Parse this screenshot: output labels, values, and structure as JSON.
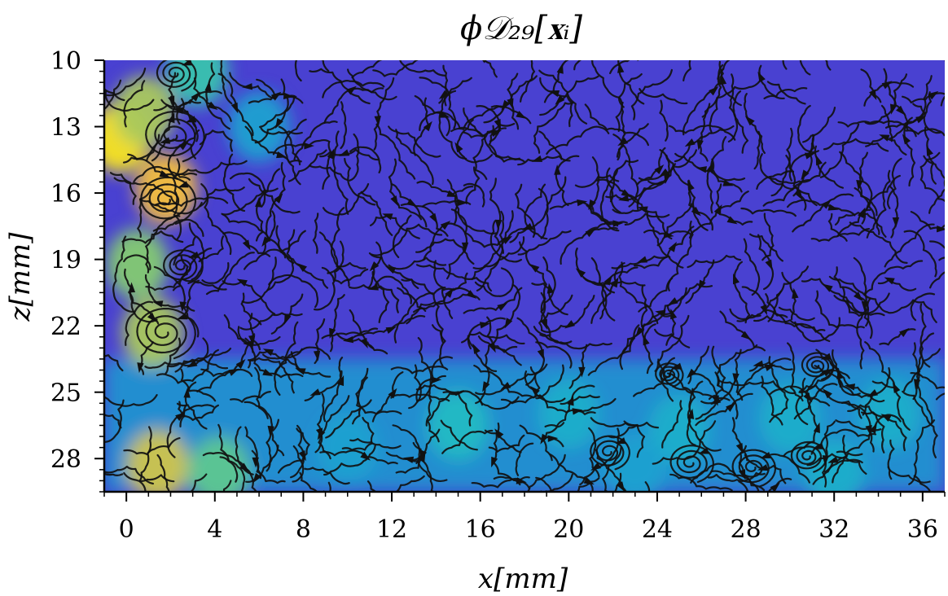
{
  "chart_data": {
    "type": "heatmap",
    "overlay": "streamlines",
    "title": "ϕ𝒟₂₉[𝐱ᵢ]",
    "xlabel": "x[mm]",
    "ylabel": "z[mm]",
    "xlim": [
      -1,
      37
    ],
    "ylim": [
      29.5,
      10
    ],
    "y_inverted": true,
    "x_ticks": [
      "0",
      "4",
      "8",
      "12",
      "16",
      "20",
      "24",
      "28",
      "32",
      "36"
    ],
    "y_ticks": [
      "10",
      "13",
      "16",
      "19",
      "22",
      "25",
      "28"
    ],
    "colormap": [
      "#3e26a8",
      "#4a3fd1",
      "#2f6bd9",
      "#1c9bd3",
      "#22c1c0",
      "#8fcc68",
      "#fcbf3a",
      "#f9fb0e"
    ],
    "background_value": 0.15,
    "hot_spots": [
      {
        "x": -0.3,
        "z": 13.5,
        "value": 0.95
      },
      {
        "x": 0.8,
        "z": 12.3,
        "value": 0.75
      },
      {
        "x": 1.8,
        "z": 15.8,
        "value": 0.85
      },
      {
        "x": 0.5,
        "z": 19.2,
        "value": 0.7
      },
      {
        "x": 1.2,
        "z": 22.3,
        "value": 0.75
      },
      {
        "x": 3.2,
        "z": 10.5,
        "value": 0.6
      },
      {
        "x": 1.4,
        "z": 28.3,
        "value": 0.8
      },
      {
        "x": 4.2,
        "z": 28.6,
        "value": 0.65
      },
      {
        "x": 6.0,
        "z": 13.0,
        "value": 0.45
      },
      {
        "x": 15.0,
        "z": 26.5,
        "value": 0.55
      },
      {
        "x": 20.0,
        "z": 26.0,
        "value": 0.5
      },
      {
        "x": 25.0,
        "z": 26.7,
        "value": 0.5
      },
      {
        "x": 30.0,
        "z": 26.2,
        "value": 0.5
      },
      {
        "x": 34.5,
        "z": 26.0,
        "value": 0.5
      },
      {
        "x": 10.0,
        "z": 27.5,
        "value": 0.45
      },
      {
        "x": 23.0,
        "z": 28.5,
        "value": 0.45
      },
      {
        "x": 32.0,
        "z": 28.7,
        "value": 0.5
      }
    ],
    "bottom_band": {
      "z_start": 23.5,
      "value": 0.45
    },
    "vortices": [
      {
        "x": 2.2,
        "z": 10.6,
        "radius": 1.0
      },
      {
        "x": 2.1,
        "z": 13.4,
        "radius": 1.5
      },
      {
        "x": 1.8,
        "z": 16.3,
        "radius": 1.4
      },
      {
        "x": 1.7,
        "z": 22.3,
        "radius": 1.5
      },
      {
        "x": 2.5,
        "z": 19.3,
        "radius": 1.0
      },
      {
        "x": 21.8,
        "z": 27.7,
        "radius": 1.0
      },
      {
        "x": 25.5,
        "z": 28.2,
        "radius": 1.1
      },
      {
        "x": 28.3,
        "z": 28.4,
        "radius": 1.1
      },
      {
        "x": 30.8,
        "z": 27.9,
        "radius": 0.9
      },
      {
        "x": 31.2,
        "z": 23.8,
        "radius": 0.8
      },
      {
        "x": 24.5,
        "z": 24.2,
        "radius": 0.7
      }
    ]
  }
}
